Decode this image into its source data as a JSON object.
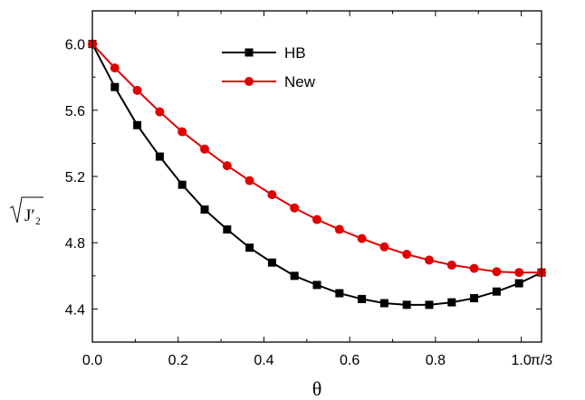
{
  "chart_data": {
    "type": "line",
    "xlabel": "θ",
    "ylabel": "J′₂",
    "xlim": [
      0,
      1.0472
    ],
    "ylim": [
      4.2,
      6.2
    ],
    "xticks": [
      {
        "value": 0.0,
        "label": "0.0"
      },
      {
        "value": 0.2,
        "label": "0.2"
      },
      {
        "value": 0.4,
        "label": "0.4"
      },
      {
        "value": 0.6,
        "label": "0.6"
      },
      {
        "value": 0.8,
        "label": "0.8"
      },
      {
        "value": 1.0,
        "label": "1.0"
      },
      {
        "value": 1.0472,
        "label": "π/3"
      }
    ],
    "yticks": [
      {
        "value": 4.4,
        "label": "4.4"
      },
      {
        "value": 4.8,
        "label": "4.8"
      },
      {
        "value": 5.2,
        "label": "5.2"
      },
      {
        "value": 5.6,
        "label": "5.6"
      },
      {
        "value": 6.0,
        "label": "6.0"
      }
    ],
    "legend": {
      "position": "top-center"
    },
    "series": [
      {
        "name": "HB",
        "color": "#000000",
        "marker": "square",
        "x": [
          0.0,
          0.0524,
          0.1047,
          0.1571,
          0.2094,
          0.2618,
          0.3142,
          0.3665,
          0.4189,
          0.4712,
          0.5236,
          0.576,
          0.6283,
          0.6807,
          0.733,
          0.7854,
          0.8378,
          0.8901,
          0.9425,
          0.9948,
          1.0472
        ],
        "y": [
          6.0,
          5.74,
          5.51,
          5.32,
          5.15,
          5.0,
          4.88,
          4.77,
          4.68,
          4.6,
          4.545,
          4.495,
          4.46,
          4.435,
          4.425,
          4.425,
          4.44,
          4.465,
          4.505,
          4.555,
          4.62
        ]
      },
      {
        "name": "New",
        "color": "#e00000",
        "marker": "circle",
        "x": [
          0.0,
          0.0524,
          0.1047,
          0.1571,
          0.2094,
          0.2618,
          0.3142,
          0.3665,
          0.4189,
          0.4712,
          0.5236,
          0.576,
          0.6283,
          0.6807,
          0.733,
          0.7854,
          0.8378,
          0.8901,
          0.9425,
          0.9948,
          1.0472
        ],
        "y": [
          6.0,
          5.855,
          5.72,
          5.59,
          5.47,
          5.365,
          5.265,
          5.175,
          5.09,
          5.01,
          4.94,
          4.88,
          4.825,
          4.775,
          4.73,
          4.695,
          4.665,
          4.645,
          4.625,
          4.62,
          4.62
        ]
      }
    ]
  }
}
